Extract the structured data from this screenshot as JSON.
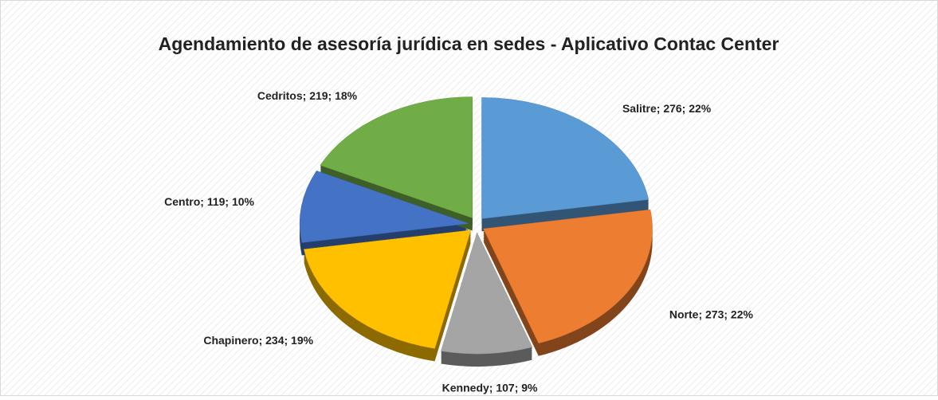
{
  "chart_data": {
    "type": "pie",
    "title": "Agendamiento de asesoría jurídica en sedes - Aplicativo Contac Center",
    "values": [
      276,
      273,
      107,
      234,
      119,
      219
    ],
    "value_labels": [
      "Salitre; 276; 22%",
      "Norte; 273; 22%",
      "Kennedy; 107; 9%",
      "Chapinero; 234; 19%",
      "Centro; 119; 10%",
      "Cedritos; 219; 18%"
    ],
    "colors": [
      "#5b9bd5",
      "#ed7d31",
      "#a5a5a5",
      "#ffc000",
      "#4472c4",
      "#70ad47"
    ]
  }
}
